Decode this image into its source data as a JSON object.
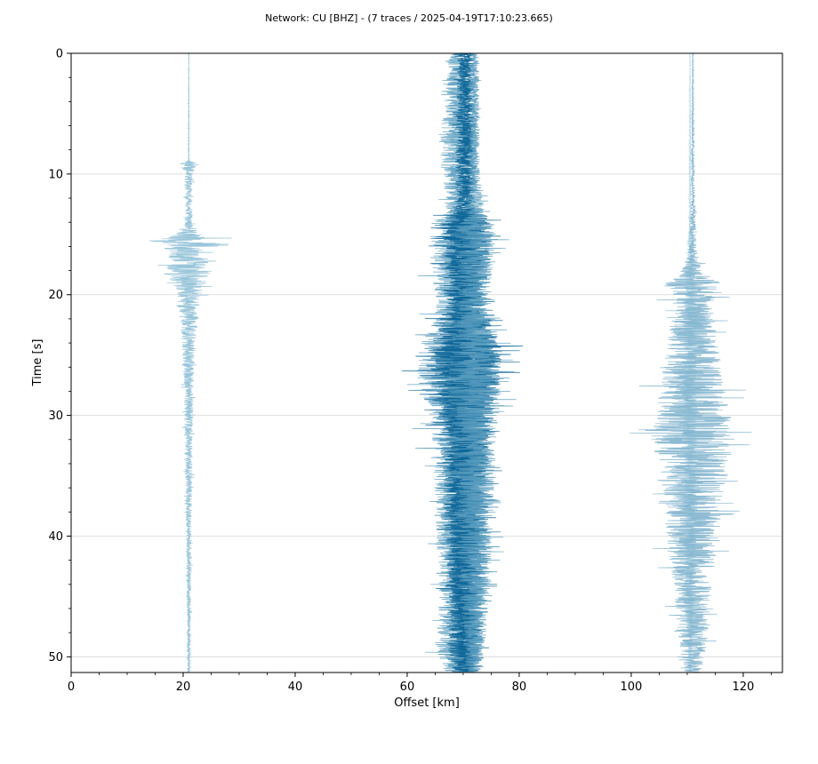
{
  "chart_data": {
    "type": "line",
    "title": "Network: CU [BHZ] - (7 traces / 2025-04-19T17:10:23.665)",
    "xlabel": "Offset [km]",
    "ylabel": "Time [s]",
    "xlim": [
      0,
      127
    ],
    "ylim": [
      51.3,
      0
    ],
    "y_inverted": true,
    "x_ticks": [
      0,
      20,
      40,
      60,
      80,
      100,
      120
    ],
    "y_ticks": [
      0,
      10,
      20,
      30,
      40,
      50
    ],
    "grid": "horizontal",
    "colors": {
      "light": "#8ebfd6",
      "mid": "#5c9fc0",
      "dark": "#0b6496",
      "grid": "#d6d6d6"
    },
    "traces": [
      {
        "offset_km": 21.0,
        "color": "#8ebfd6",
        "envelope": [
          [
            0,
            0.05
          ],
          [
            8.8,
            0.1
          ],
          [
            9.2,
            1.8
          ],
          [
            10.0,
            0.8
          ],
          [
            12.0,
            0.6
          ],
          [
            14.5,
            0.8
          ],
          [
            15.2,
            3.5
          ],
          [
            15.7,
            9.0
          ],
          [
            16.3,
            3.5
          ],
          [
            17.5,
            4.0
          ],
          [
            18.2,
            4.5
          ],
          [
            19.5,
            2.5
          ],
          [
            21.0,
            2.0
          ],
          [
            23.0,
            1.5
          ],
          [
            26.0,
            1.0
          ],
          [
            30.0,
            0.8
          ],
          [
            35.0,
            0.6
          ],
          [
            40.0,
            0.5
          ],
          [
            45.0,
            0.4
          ],
          [
            51.3,
            0.3
          ]
        ]
      },
      {
        "offset_km": 69.0,
        "color": "#5c9fc0",
        "envelope": [
          [
            0,
            1.5
          ],
          [
            5.0,
            2.5
          ],
          [
            7.0,
            3.5
          ],
          [
            9.5,
            3.0
          ],
          [
            12.5,
            2.0
          ],
          [
            13.5,
            3.0
          ],
          [
            14.5,
            5.0
          ],
          [
            18.0,
            4.5
          ],
          [
            22.0,
            4.0
          ],
          [
            23.5,
            6.0
          ],
          [
            25.5,
            8.0
          ],
          [
            27.5,
            7.0
          ],
          [
            30.0,
            5.0
          ],
          [
            33.0,
            4.5
          ],
          [
            38.0,
            4.0
          ],
          [
            43.0,
            3.5
          ],
          [
            47.0,
            3.5
          ],
          [
            48.7,
            4.5
          ],
          [
            51.3,
            2.5
          ]
        ]
      },
      {
        "offset_km": 70.0,
        "color": "#0b6496",
        "envelope": [
          [
            0,
            1.0
          ],
          [
            8.0,
            1.5
          ],
          [
            12.5,
            1.5
          ],
          [
            13.8,
            4.0
          ],
          [
            17.0,
            3.5
          ],
          [
            21.0,
            3.5
          ],
          [
            23.0,
            5.0
          ],
          [
            25.0,
            7.0
          ],
          [
            27.0,
            6.5
          ],
          [
            30.0,
            5.0
          ],
          [
            34.0,
            4.0
          ],
          [
            39.0,
            3.5
          ],
          [
            44.0,
            3.0
          ],
          [
            49.0,
            3.0
          ],
          [
            51.3,
            2.0
          ]
        ]
      },
      {
        "offset_km": 71.0,
        "color": "#0b6496",
        "envelope": [
          [
            0,
            1.0
          ],
          [
            8.0,
            1.3
          ],
          [
            13.0,
            1.3
          ],
          [
            14.0,
            4.5
          ],
          [
            17.0,
            4.0
          ],
          [
            21.0,
            3.0
          ],
          [
            24.0,
            6.0
          ],
          [
            26.5,
            6.0
          ],
          [
            30.0,
            4.5
          ],
          [
            35.0,
            3.5
          ],
          [
            40.0,
            3.5
          ],
          [
            45.0,
            3.0
          ],
          [
            51.3,
            2.0
          ]
        ]
      },
      {
        "offset_km": 72.0,
        "color": "#5c9fc0",
        "envelope": [
          [
            0,
            0.8
          ],
          [
            10.0,
            1.0
          ],
          [
            13.5,
            2.0
          ],
          [
            15.0,
            4.0
          ],
          [
            20.0,
            3.0
          ],
          [
            24.0,
            4.5
          ],
          [
            28.0,
            5.0
          ],
          [
            32.0,
            4.0
          ],
          [
            38.0,
            3.5
          ],
          [
            44.0,
            3.0
          ],
          [
            51.3,
            1.5
          ]
        ]
      },
      {
        "offset_km": 110.5,
        "color": "#b3d6e6",
        "envelope": [
          [
            0,
            0.05
          ],
          [
            8.0,
            0.15
          ],
          [
            14.0,
            0.2
          ],
          [
            16.5,
            0.6
          ],
          [
            18.5,
            1.0
          ],
          [
            21.0,
            1.2
          ],
          [
            25.0,
            1.3
          ],
          [
            30.0,
            1.3
          ],
          [
            35.0,
            1.2
          ],
          [
            40.0,
            1.0
          ],
          [
            45.0,
            0.8
          ],
          [
            51.3,
            0.3
          ]
        ]
      },
      {
        "offset_km": 111.0,
        "color": "#7fb2cd",
        "envelope": [
          [
            0,
            0.1
          ],
          [
            12.0,
            0.3
          ],
          [
            16.5,
            0.8
          ],
          [
            18.0,
            2.0
          ],
          [
            19.0,
            5.0
          ],
          [
            21.0,
            3.5
          ],
          [
            23.5,
            4.5
          ],
          [
            26.5,
            5.5
          ],
          [
            29.5,
            6.5
          ],
          [
            32.0,
            7.5
          ],
          [
            34.5,
            6.5
          ],
          [
            37.0,
            5.0
          ],
          [
            40.0,
            5.0
          ],
          [
            44.0,
            3.5
          ],
          [
            47.0,
            3.0
          ],
          [
            49.0,
            2.5
          ],
          [
            51.3,
            1.5
          ]
        ]
      }
    ]
  }
}
